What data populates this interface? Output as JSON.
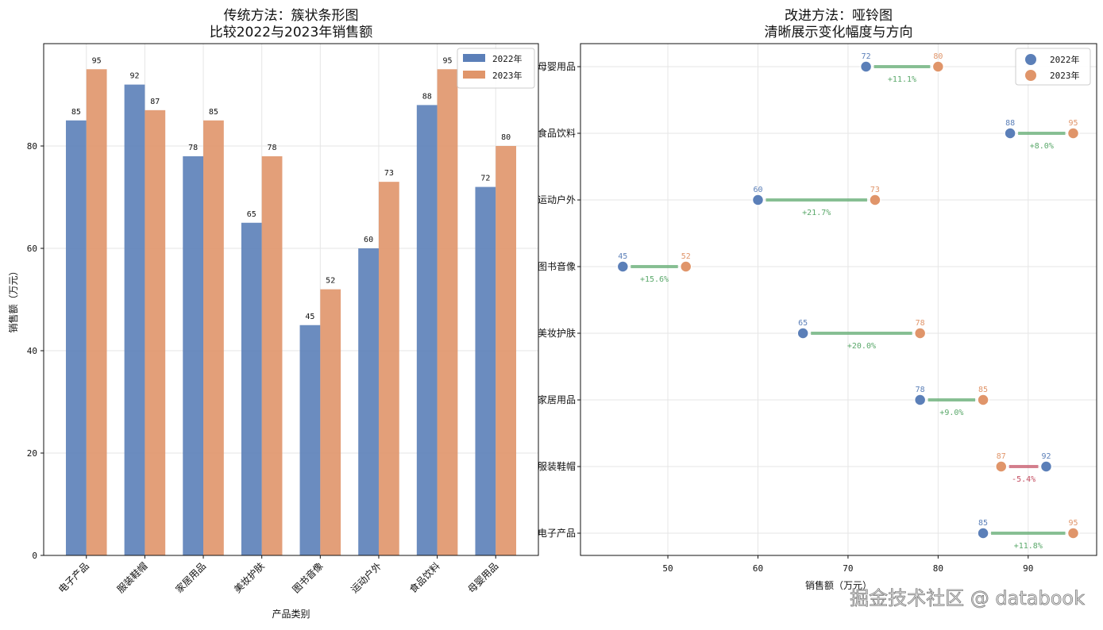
{
  "chart_data": [
    {
      "type": "bar",
      "title": "传统方法：簇状条形图\n比较2022与2023年销售额",
      "xlabel": "产品类别",
      "ylabel": "销售额（万元）",
      "categories": [
        "电子产品",
        "服装鞋帽",
        "家居用品",
        "美妆护肤",
        "图书音像",
        "运动户外",
        "食品饮料",
        "母婴用品"
      ],
      "series": [
        {
          "name": "2022年",
          "color": "#5b7fb8",
          "values": [
            85,
            92,
            78,
            65,
            45,
            60,
            88,
            72
          ]
        },
        {
          "name": "2023年",
          "color": "#e0956a",
          "values": [
            95,
            87,
            85,
            78,
            52,
            73,
            95,
            80
          ]
        }
      ],
      "ylim": [
        0,
        100
      ],
      "yticks": [
        0,
        20,
        40,
        60,
        80
      ],
      "grid": true,
      "legend": "top-right"
    },
    {
      "type": "scatter",
      "subtype": "dumbbell",
      "title": "改进方法：哑铃图\n清晰展示变化幅度与方向",
      "xlabel": "销售额（万元）",
      "categories": [
        "电子产品",
        "服装鞋帽",
        "家居用品",
        "美妆护肤",
        "图书音像",
        "运动户外",
        "食品饮料",
        "母婴用品"
      ],
      "series": [
        {
          "name": "2022年",
          "color": "#5b7fb8",
          "values": [
            85,
            92,
            78,
            65,
            45,
            60,
            88,
            72
          ]
        },
        {
          "name": "2023年",
          "color": "#e0956a",
          "values": [
            95,
            87,
            85,
            78,
            52,
            73,
            95,
            80
          ]
        }
      ],
      "changes": [
        "+11.8%",
        "-5.4%",
        "+9.0%",
        "+20.0%",
        "+15.6%",
        "+21.7%",
        "+8.0%",
        "+11.1%"
      ],
      "increase_color": "#5aa86a",
      "decrease_color": "#c44e62",
      "xlim": [
        40.3,
        97.6
      ],
      "xticks": [
        50,
        60,
        70,
        80,
        90
      ],
      "grid": true,
      "legend": "top-right"
    }
  ],
  "watermark": "掘金技术社区 @ databook"
}
